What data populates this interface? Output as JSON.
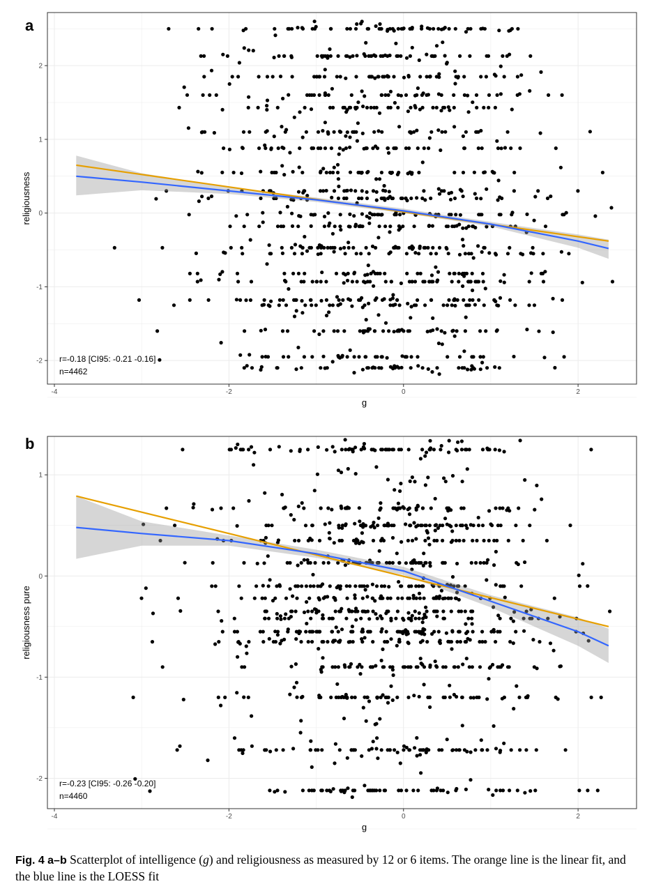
{
  "figure": {
    "caption": {
      "label": "Fig. 4",
      "parts": "a–b",
      "text_1": " Scatterplot of intelligence (",
      "variable": "g",
      "text_2": ") and religiousness as measured by 12 or 6 items. The orange line is the linear fit, and the blue line is the LOESS fit"
    }
  },
  "colors": {
    "linear_fit": "#E69F00",
    "loess_fit": "#3366FF",
    "ci_band": "#999999",
    "points": "#000000",
    "grid": "#EBEBEB",
    "panel_border": "#333333"
  },
  "chart_data": [
    {
      "panel": "a",
      "type": "scatter",
      "xlabel": "g",
      "ylabel": "religiousness",
      "xlim": [
        -3.8,
        2.4
      ],
      "ylim": [
        -2.2,
        2.6
      ],
      "xticks": [
        -4,
        -2,
        0,
        2
      ],
      "yticks": [
        -2,
        -1,
        0,
        1,
        2
      ],
      "grid": true,
      "annotation": [
        "r=-0.18 [CI95: -0.21 -0.16]",
        "n=4462"
      ],
      "n_points": 4462,
      "y_levels": [
        2.5,
        2.13,
        1.85,
        1.6,
        1.43,
        1.1,
        0.88,
        0.55,
        0.3,
        0.2,
        -0.02,
        -0.18,
        -0.47,
        -0.55,
        -0.82,
        -0.93,
        -1.18,
        -1.25,
        -1.6,
        -1.95,
        -2.1
      ],
      "linear_fit": {
        "x": [
          -3.75,
          2.35
        ],
        "y": [
          0.65,
          -0.38
        ]
      },
      "loess_fit": {
        "x": [
          -3.75,
          -3.0,
          -2.0,
          -1.0,
          0.0,
          1.0,
          2.0,
          2.35
        ],
        "y": [
          0.5,
          0.42,
          0.3,
          0.18,
          0.03,
          -0.15,
          -0.38,
          -0.48
        ],
        "ci_lower": [
          0.24,
          0.31,
          0.26,
          0.15,
          0.0,
          -0.18,
          -0.47,
          -0.62
        ],
        "ci_upper": [
          0.78,
          0.54,
          0.35,
          0.21,
          0.06,
          -0.12,
          -0.29,
          -0.36
        ]
      }
    },
    {
      "panel": "b",
      "type": "scatter",
      "xlabel": "g",
      "ylabel": "religiousness pure",
      "xlim": [
        -3.8,
        2.4
      ],
      "ylim": [
        -2.2,
        1.35
      ],
      "xticks": [
        -4,
        -2,
        0,
        2
      ],
      "yticks": [
        -2,
        -1,
        0,
        1
      ],
      "grid": true,
      "annotation": [
        "r=-0.23 [CI95: -0.26 -0.20]",
        "n=4460"
      ],
      "n_points": 4460,
      "y_levels": [
        1.25,
        0.67,
        0.5,
        0.35,
        0.13,
        -0.1,
        -0.22,
        -0.35,
        -0.42,
        -0.55,
        -0.65,
        -0.9,
        -1.2,
        -1.72,
        -2.12
      ],
      "linear_fit": {
        "x": [
          -3.75,
          2.35
        ],
        "y": [
          0.79,
          -0.5
        ]
      },
      "loess_fit": {
        "x": [
          -3.75,
          -3.0,
          -2.0,
          -1.0,
          0.0,
          1.0,
          2.0,
          2.35
        ],
        "y": [
          0.48,
          0.42,
          0.35,
          0.22,
          0.05,
          -0.25,
          -0.55,
          -0.69
        ],
        "ci_lower": [
          0.17,
          0.3,
          0.3,
          0.18,
          0.01,
          -0.31,
          -0.69,
          -0.86
        ],
        "ci_upper": [
          0.79,
          0.54,
          0.4,
          0.26,
          0.09,
          -0.19,
          -0.41,
          -0.52
        ]
      }
    }
  ]
}
